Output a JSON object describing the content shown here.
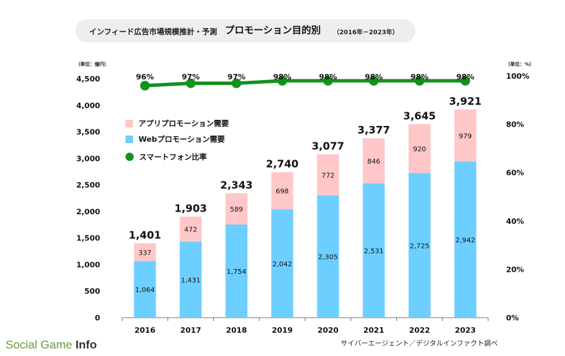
{
  "header": {
    "title_main": "インフィード広告市場規模推計・予測",
    "title_sub": "プロモーション目的別",
    "title_period": "（2016年－2023年）"
  },
  "units": {
    "left": "（単位：億円）",
    "right": "（単位：%）"
  },
  "legend": {
    "app": "アプリプロモーション需要",
    "web": "Webプロモーション需要",
    "smartphone": "スマートフォン比率"
  },
  "source": "サイバーエージェント／デジタルインファクト調べ",
  "logo": {
    "social": "Social",
    "game": "Game",
    "info": "Info"
  },
  "colors": {
    "web": "#6dcfff",
    "app": "#ffc7c7",
    "line": "#12911c"
  },
  "chart_data": {
    "type": "bar",
    "stacked": true,
    "categories": [
      "2016",
      "2017",
      "2018",
      "2019",
      "2020",
      "2021",
      "2022",
      "2023"
    ],
    "series": [
      {
        "name": "Webプロモーション需要",
        "values": [
          1064,
          1431,
          1754,
          2042,
          2305,
          2531,
          2725,
          2942
        ],
        "labels": [
          "1,064",
          "1,431",
          "1,754",
          "2,042",
          "2,305",
          "2,531",
          "2,725",
          "2,942"
        ]
      },
      {
        "name": "アプリプロモーション需要",
        "values": [
          337,
          472,
          589,
          698,
          772,
          846,
          920,
          979
        ],
        "labels": [
          "337",
          "472",
          "589",
          "698",
          "772",
          "846",
          "920",
          "979"
        ]
      }
    ],
    "totals": [
      "1,401",
      "1,903",
      "2,343",
      "2,740",
      "3,077",
      "3,377",
      "3,645",
      "3,921"
    ],
    "line_series": {
      "name": "スマートフォン比率",
      "values": [
        96,
        97,
        97,
        98,
        98,
        98,
        98,
        98
      ],
      "labels": [
        "96%",
        "97%",
        "97%",
        "98%",
        "98%",
        "98%",
        "98%",
        "98%"
      ]
    },
    "y_left": {
      "ylim": [
        0,
        4500
      ],
      "ticks": [
        0,
        500,
        1000,
        1500,
        2000,
        2500,
        3000,
        3500,
        4000,
        4500
      ],
      "tick_labels": [
        "0",
        "500",
        "1,000",
        "1,500",
        "2,000",
        "2,500",
        "3,000",
        "3,500",
        "4,000",
        "4,500"
      ]
    },
    "y_right": {
      "ylim": [
        0,
        100
      ],
      "ticks": [
        0,
        20,
        40,
        60,
        80,
        100
      ],
      "tick_labels": [
        "0%",
        "20%",
        "40%",
        "60%",
        "80%",
        "100%"
      ]
    },
    "grid": false,
    "legend_position": "top-left"
  }
}
